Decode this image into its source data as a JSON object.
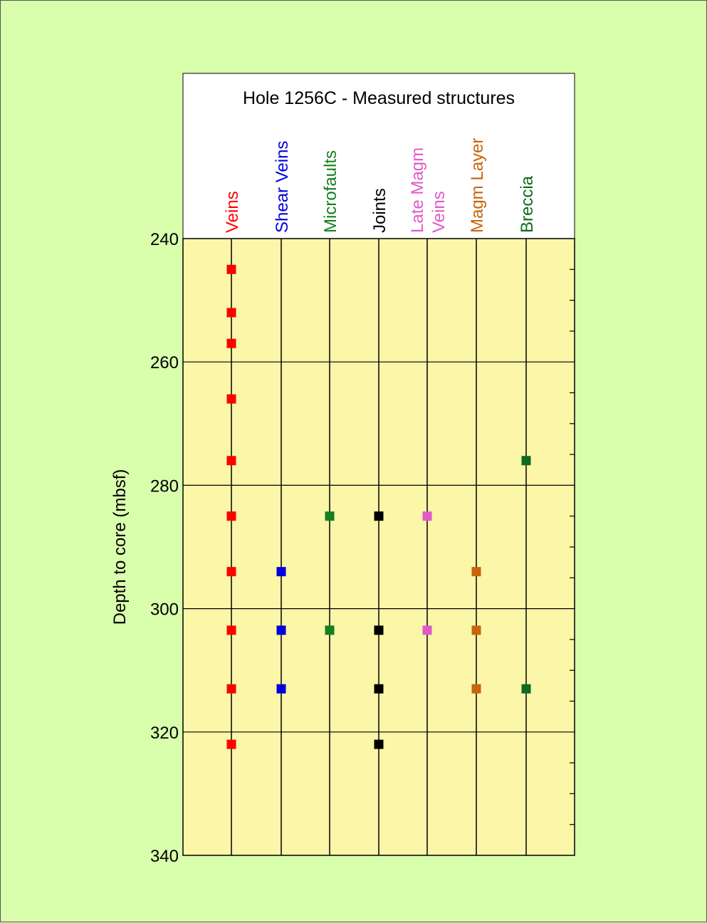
{
  "chart_data": {
    "type": "scatter",
    "title": "Hole 1256C - Measured structures",
    "ylabel": "Depth to core (mbsf)",
    "ylim": [
      240,
      340
    ],
    "yticks": [
      240,
      260,
      280,
      300,
      320,
      340
    ],
    "y_minor_step": 5,
    "y_inverted": true,
    "grid": true,
    "colors": {
      "plot_background": "#fbf6a8",
      "page_background": "#d9ffad",
      "header_background": "#ffffff"
    },
    "categories": [
      {
        "lines": [
          "Veins"
        ],
        "color": "#ff0000"
      },
      {
        "lines": [
          "Shear Veins"
        ],
        "color": "#0000dd"
      },
      {
        "lines": [
          "Microfaults"
        ],
        "color": "#14801e"
      },
      {
        "lines": [
          "Joints"
        ],
        "color": "#000000"
      },
      {
        "lines": [
          "Late Magm",
          "Veins"
        ],
        "color": "#e05ac8"
      },
      {
        "lines": [
          "Magm Layer"
        ],
        "color": "#c8640a"
      },
      {
        "lines": [
          "Breccia"
        ],
        "color": "#0e6a1e"
      }
    ],
    "series": [
      {
        "category": "Veins",
        "depths": [
          245,
          252,
          257,
          266,
          276,
          285,
          294,
          303.5,
          313,
          322
        ]
      },
      {
        "category": "Shear Veins",
        "depths": [
          294,
          303.5,
          313
        ]
      },
      {
        "category": "Microfaults",
        "depths": [
          285,
          303.5
        ]
      },
      {
        "category": "Joints",
        "depths": [
          285,
          303.5,
          313,
          322
        ]
      },
      {
        "category": "Late Magm Veins",
        "depths": [
          285,
          303.5
        ]
      },
      {
        "category": "Magm Layer",
        "depths": [
          294,
          303.5,
          313
        ]
      },
      {
        "category": "Breccia",
        "depths": [
          276,
          313
        ]
      }
    ]
  }
}
